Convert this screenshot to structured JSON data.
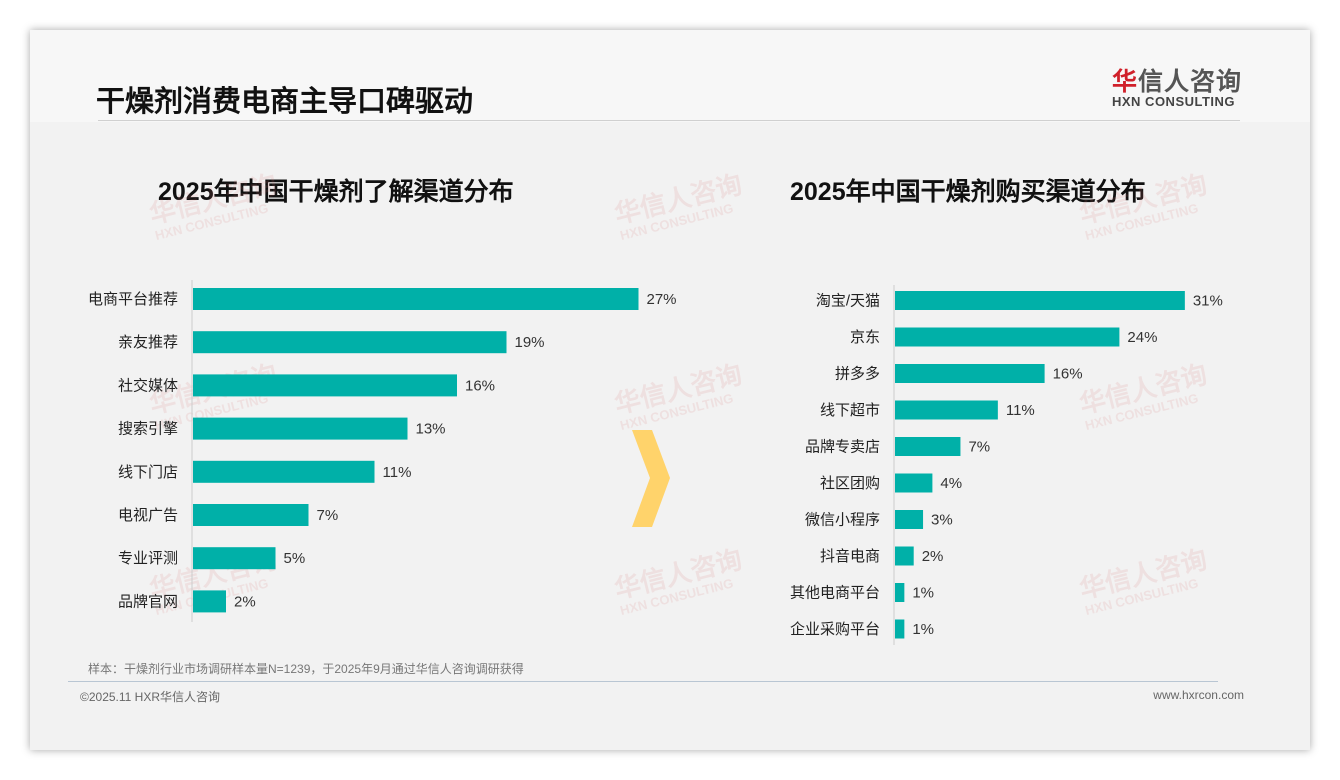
{
  "header": {
    "title": "干燥剂消费电商主导口碑驱动",
    "logo_cn_red": "华",
    "logo_cn": "信人咨询",
    "logo_en": "HXN CONSULTING"
  },
  "watermark": {
    "cn": "华信人咨询",
    "en": "HXN CONSULTING"
  },
  "colors": {
    "bar": "#00b0a8",
    "arrow": "#ffd36b"
  },
  "chart_data": [
    {
      "type": "bar",
      "orientation": "horizontal",
      "title": "2025年中国干燥剂了解渠道分布",
      "categories": [
        "电商平台推荐",
        "亲友推荐",
        "社交媒体",
        "搜索引擎",
        "线下门店",
        "电视广告",
        "专业评测",
        "品牌官网"
      ],
      "values": [
        27,
        19,
        16,
        13,
        11,
        7,
        5,
        2
      ],
      "labels": [
        "27%",
        "19%",
        "16%",
        "13%",
        "11%",
        "7%",
        "5%",
        "2%"
      ],
      "xlim": [
        0,
        30
      ],
      "grid": false
    },
    {
      "type": "bar",
      "orientation": "horizontal",
      "title": "2025年中国干燥剂购买渠道分布",
      "categories": [
        "淘宝/天猫",
        "京东",
        "拼多多",
        "线下超市",
        "品牌专卖店",
        "社区团购",
        "微信小程序",
        "抖音电商",
        "其他电商平台",
        "企业采购平台"
      ],
      "values": [
        31,
        24,
        16,
        11,
        7,
        4,
        3,
        2,
        1,
        1
      ],
      "labels": [
        "31%",
        "24%",
        "16%",
        "11%",
        "7%",
        "4%",
        "3%",
        "2%",
        "1%",
        "1%"
      ],
      "xlim": [
        0,
        35
      ],
      "grid": false
    }
  ],
  "footer": {
    "note": "样本：干燥剂行业市场调研样本量N=1239，于2025年9月通过华信人咨询调研获得",
    "copyright": "©2025.11 HXR华信人咨询",
    "website": "www.hxrcon.com"
  }
}
